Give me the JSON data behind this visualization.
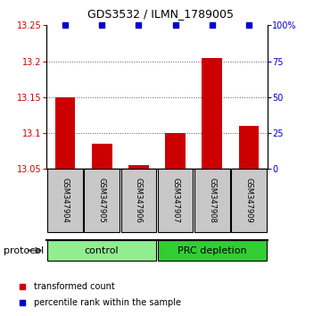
{
  "title": "GDS3532 / ILMN_1789005",
  "samples": [
    "GSM347904",
    "GSM347905",
    "GSM347906",
    "GSM347907",
    "GSM347908",
    "GSM347909"
  ],
  "red_values": [
    13.15,
    13.085,
    13.055,
    13.1,
    13.205,
    13.11
  ],
  "blue_values": [
    100,
    100,
    100,
    100,
    100,
    100
  ],
  "baseline": 13.05,
  "ylim_left": [
    13.05,
    13.25
  ],
  "ylim_right": [
    0,
    100
  ],
  "yticks_left": [
    13.05,
    13.1,
    13.15,
    13.2,
    13.25
  ],
  "yticks_right": [
    0,
    25,
    50,
    75,
    100
  ],
  "ytick_labels_left": [
    "13.05",
    "13.1",
    "13.15",
    "13.2",
    "13.25"
  ],
  "ytick_labels_right": [
    "0",
    "25",
    "50",
    "75",
    "100%"
  ],
  "groups": [
    {
      "label": "control",
      "samples": [
        0,
        1,
        2
      ],
      "color": "#90EE90"
    },
    {
      "label": "PRC depletion",
      "samples": [
        3,
        4,
        5
      ],
      "color": "#32CD32"
    }
  ],
  "bar_color": "#CC0000",
  "blue_color": "#0000CC",
  "sample_bg": "#C8C8C8",
  "protocol_label": "protocol",
  "legend_red": "transformed count",
  "legend_blue": "percentile rank within the sample",
  "dotted_line_color": "#555555",
  "title_fontsize": 9,
  "tick_fontsize": 7,
  "sample_fontsize": 6,
  "group_fontsize": 8,
  "legend_fontsize": 7
}
